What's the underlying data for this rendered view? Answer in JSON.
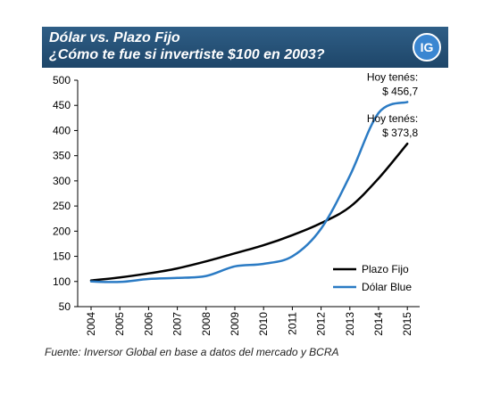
{
  "header": {
    "title_line1": "Dólar vs. Plazo Fijo",
    "title_line2": "¿Cómo te fue si invertiste $100 en 2003?",
    "logo_text": "IG",
    "background_color": "#1f4a70",
    "logo_color": "#3a86d1"
  },
  "chart_data": {
    "type": "line",
    "title": "",
    "xlabel": "",
    "ylabel": "",
    "x": [
      2004,
      2005,
      2006,
      2007,
      2008,
      2009,
      2010,
      2011,
      2012,
      2013,
      2014,
      2015
    ],
    "x_tick_labels": [
      "2004",
      "2005",
      "2006",
      "2007",
      "2008",
      "2009",
      "2010",
      "2011",
      "2012",
      "2013",
      "2014",
      "2015"
    ],
    "y_ticks": [
      50,
      100,
      150,
      200,
      250,
      300,
      350,
      400,
      450,
      500
    ],
    "ylim": [
      50,
      500
    ],
    "grid": false,
    "legend_position": "bottom-right",
    "series": [
      {
        "name": "Plazo Fijo",
        "color": "#000000",
        "values": [
          102,
          108,
          116,
          126,
          140,
          156,
          172,
          192,
          216,
          248,
          305,
          373.8
        ]
      },
      {
        "name": "Dólar Blue",
        "color": "#2b7bc4",
        "values": [
          100,
          99,
          105,
          107,
          111,
          130,
          135,
          150,
          205,
          310,
          435,
          456.7
        ]
      }
    ],
    "annotations": [
      {
        "series": "Dólar Blue",
        "line1": "Hoy tenés:",
        "line2": "$ 456,7"
      },
      {
        "series": "Plazo Fijo",
        "line1": "Hoy tenés:",
        "line2": "$ 373,8"
      }
    ]
  },
  "footer": {
    "source": "Fuente: Inversor Global en base a datos del mercado y BCRA"
  }
}
